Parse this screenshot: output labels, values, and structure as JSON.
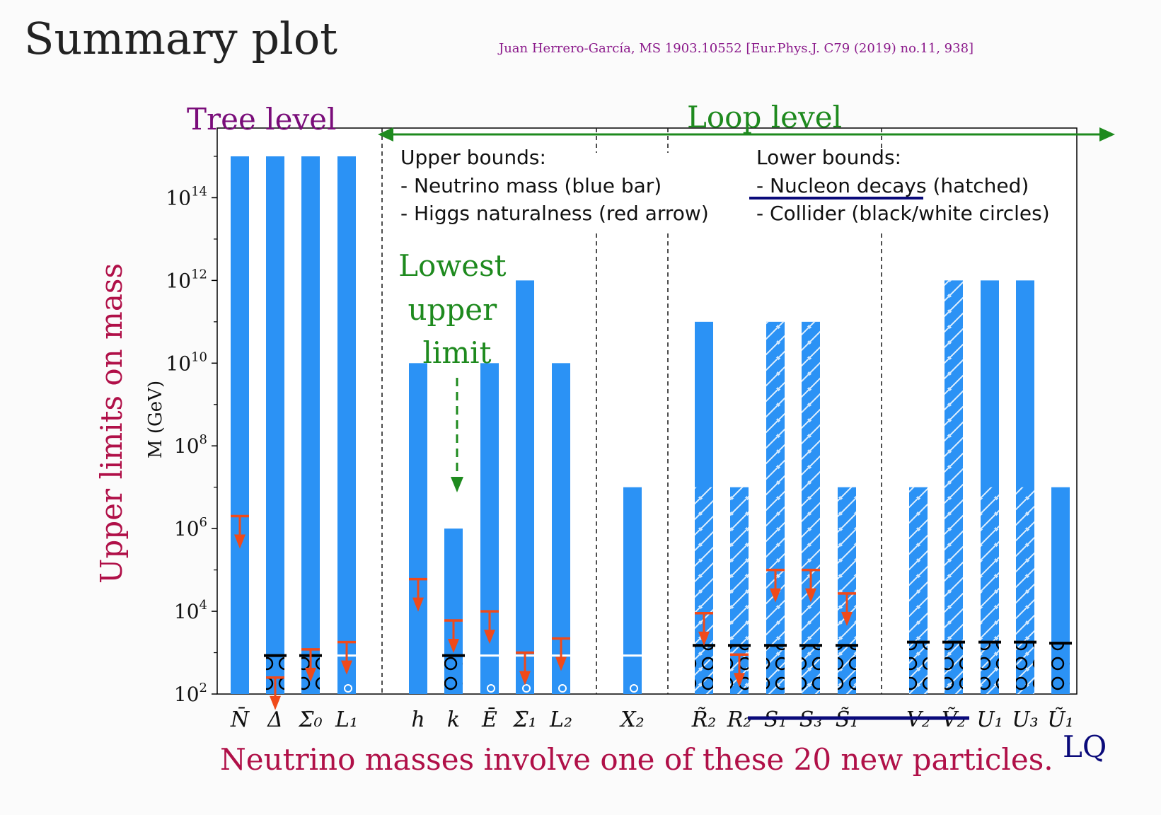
{
  "slide": {
    "title": "Summary plot",
    "citation": "Juan Herrero-García, MS 1903.10552 [Eur.Phys.J. C79 (2019) no.11, 938]",
    "tree_label": "Tree level",
    "loop_label": "Loop level",
    "ylabel": "Upper limits on mass",
    "axis_unit_label": "M (GeV)",
    "annotation": "Lowest upper limit",
    "footer": "Neutrino masses involve one of these 20 new particles.",
    "lq_label": "LQ",
    "legend_upper_title": "Upper bounds:",
    "legend_upper_items": [
      "- Neutrino mass (blue bar)",
      "- Higgs naturalness (red arrow)"
    ],
    "legend_lower_title": "Lower bounds:",
    "legend_lower_items": [
      "- Nucleon decays (hatched)",
      "- Collider (black/white circles)"
    ],
    "colors": {
      "bar": "#2b92f5",
      "arrow": "#f04a1a",
      "tree": "#7a0d7a",
      "loop": "#1e8a1e",
      "ylabel": "#b01048",
      "footer": "#b01048",
      "lq": "#0a0a7a",
      "citation": "#8b1a8b"
    }
  },
  "chart_data": {
    "type": "bar",
    "yscale": "log",
    "ylim": [
      100,
      1000000000000000.0
    ],
    "ytick_exponents": [
      2,
      4,
      6,
      8,
      10,
      12,
      14
    ],
    "categories": [
      "N̄",
      "Δ",
      "Σ̄₀",
      "L₁",
      "h",
      "k",
      "Ē",
      "Σ̄₁",
      "L₂",
      "X₂",
      "R̃₂",
      "R₂",
      "S₁",
      "S₃",
      "S̃₁",
      "V₂",
      "Ṽ₂",
      "U₁",
      "U₃",
      "Ũ₁"
    ],
    "series": [
      {
        "values": [
          1000000000000000.0,
          1000000000000000.0,
          1000000000000000.0,
          1000000000000000.0,
          10000000000.0,
          1000000.0,
          10000000000.0,
          1000000000000.0,
          10000000000.0,
          10000000.0,
          100000000000.0,
          10000000.0,
          100000000000.0,
          100000000000.0,
          10000000.0,
          10000000.0,
          1000000000000.0,
          1000000000000.0,
          1000000000000.0,
          10000000.0
        ]
      },
      {
        "values": [
          null,
          null,
          null,
          null,
          null,
          null,
          null,
          null,
          null,
          null,
          10000000.0,
          10000000.0,
          100000000000.0,
          100000000000.0,
          10000000.0,
          10000000.0,
          1000000000000.0,
          10000000.0,
          10000000.0,
          null
        ]
      },
      {
        "values": [
          2000000.0,
          250,
          1200,
          1800,
          60000,
          6000,
          10000,
          1000,
          2200,
          null,
          9000,
          900,
          100000,
          100000,
          27000,
          null,
          null,
          null,
          null,
          null
        ]
      },
      {
        "values": [
          null,
          850,
          850,
          null,
          null,
          850,
          null,
          null,
          null,
          null,
          1500,
          1500,
          1500,
          1500,
          1500,
          1800,
          1800,
          1800,
          1800,
          1700
        ]
      },
      {
        "values": [
          null,
          null,
          null,
          850,
          null,
          null,
          850,
          850,
          850,
          850,
          null,
          null,
          null,
          null,
          null,
          null,
          null,
          null,
          null,
          null
        ]
      }
    ]
  }
}
